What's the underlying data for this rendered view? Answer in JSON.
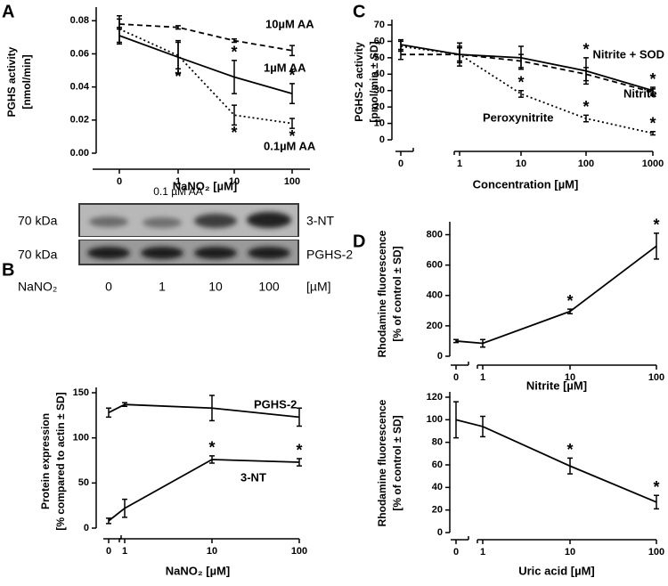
{
  "chart_data": [
    {
      "type": "line",
      "panel": "A",
      "y_label": [
        "PGHS activity",
        "[nmol/min]"
      ],
      "x_label": "NaNO₂ [µM]",
      "categories": [
        "0",
        "1",
        "10",
        "100"
      ],
      "ylim": [
        0,
        0.085
      ],
      "yticks": [
        {
          "value": 0,
          "label": "0.00"
        },
        {
          "value": 0.02,
          "label": "0.02"
        },
        {
          "value": 0.04,
          "label": "0.04"
        },
        {
          "value": 0.06,
          "label": "0.06"
        },
        {
          "value": 0.08,
          "label": "0.08"
        }
      ],
      "axis_break": false,
      "series": [
        {
          "name": "10µM AA",
          "color": "#000000",
          "line_style": "dashed",
          "values": [
            0.078,
            0.076,
            0.068,
            0.062
          ],
          "errors": [
            0.003,
            0.001,
            0.001,
            0.003
          ],
          "significance": [
            null,
            null,
            null,
            null
          ]
        },
        {
          "name": "1µM AA",
          "color": "#000000",
          "line_style": "solid",
          "values": [
            0.071,
            0.058,
            0.046,
            0.036
          ],
          "errors": [
            0.005,
            0.01,
            0.01,
            0.006
          ],
          "significance": [
            null,
            null,
            "*",
            "*"
          ]
        },
        {
          "name": "0.1µM AA",
          "color": "#000000",
          "line_style": "dotted",
          "values": [
            0.075,
            0.059,
            0.023,
            0.018
          ],
          "errors": [
            0.008,
            0.008,
            0.006,
            0.003
          ],
          "significance": [
            null,
            "*",
            "*",
            "*"
          ]
        }
      ]
    },
    {
      "type": "line",
      "panel": "C",
      "y_label": [
        "PGHS-2 activity",
        "[pmol/min ± SD]"
      ],
      "x_label": "Concentration [µM]",
      "categories": [
        "0",
        "1",
        "10",
        "100",
        "1000"
      ],
      "ylim": [
        0,
        70
      ],
      "yticks": [
        0,
        10,
        20,
        30,
        40,
        50,
        60,
        70
      ],
      "axis_break": true,
      "series": [
        {
          "name": "Nitrite + SOD",
          "color": "#000000",
          "line_style": "solid",
          "values": [
            58,
            52,
            50,
            42,
            30
          ],
          "errors": [
            3,
            7,
            7,
            8,
            2
          ],
          "significance": [
            null,
            null,
            null,
            "*",
            "*"
          ]
        },
        {
          "name": "Nitrite",
          "color": "#000000",
          "line_style": "dashed",
          "values": [
            52,
            52,
            48,
            40,
            29
          ],
          "errors": [
            3,
            4,
            4,
            4,
            2
          ],
          "significance": [
            null,
            null,
            null,
            null,
            null
          ]
        },
        {
          "name": "Peroxynitrite",
          "color": "#000000",
          "line_style": "dotted",
          "values": [
            57,
            52,
            28,
            13,
            4
          ],
          "errors": [
            3,
            5,
            2,
            2,
            1
          ],
          "significance": [
            null,
            null,
            "*",
            "*",
            "*"
          ]
        }
      ]
    },
    {
      "type": "line",
      "y_label": [
        "Protein expression",
        "[% compared to actin ± SD]"
      ],
      "x_label": "NaNO₂ [µM]",
      "categories": [
        "0",
        "1",
        "10",
        "100"
      ],
      "ylim": [
        0,
        150
      ],
      "yticks": [
        0,
        50,
        100,
        150
      ],
      "axis_break": true,
      "series": [
        {
          "name": "PGHS-2",
          "color": "#000000",
          "line_style": "solid",
          "values": [
            128,
            137,
            133,
            123
          ],
          "errors": [
            5,
            2,
            14,
            10
          ],
          "significance": [
            null,
            null,
            null,
            null
          ]
        },
        {
          "name": "3-NT",
          "color": "#000000",
          "line_style": "solid",
          "values": [
            8,
            22,
            76,
            73
          ],
          "errors": [
            3,
            10,
            4,
            4
          ],
          "significance": [
            null,
            null,
            "*",
            "*"
          ]
        }
      ]
    },
    {
      "type": "line",
      "panel": "D",
      "y_label": [
        "Rhodamine fluorescence",
        "[% of control ± SD]"
      ],
      "x_label": "Nitrite [µM]",
      "categories": [
        "0",
        "1",
        "10",
        "100"
      ],
      "ylim": [
        0,
        850
      ],
      "yticks": [
        0,
        200,
        400,
        600,
        800
      ],
      "axis_break": true,
      "series": [
        {
          "name": null,
          "color": "#000000",
          "line_style": "solid",
          "values": [
            100,
            85,
            295,
            725
          ],
          "errors": [
            10,
            25,
            15,
            85
          ],
          "significance": [
            null,
            null,
            "*",
            "*"
          ]
        }
      ]
    },
    {
      "type": "line",
      "y_label": [
        "Rhodamine fluorescence",
        "[% of control ± SD]"
      ],
      "x_label": "Uric acid [µM]",
      "categories": [
        "0",
        "1",
        "10",
        "100"
      ],
      "ylim": [
        0,
        120
      ],
      "yticks": [
        0,
        20,
        40,
        60,
        80,
        100,
        120
      ],
      "axis_break": true,
      "series": [
        {
          "name": null,
          "color": "#000000",
          "line_style": "solid",
          "values": [
            100,
            94,
            59,
            27
          ],
          "errors": [
            16,
            9,
            7,
            6
          ],
          "significance": [
            null,
            null,
            "*",
            "*"
          ]
        }
      ]
    }
  ],
  "blot": {
    "panel": "B",
    "condition": "0.1 µM AA",
    "bands": [
      {
        "size": "70 kDa",
        "label": "3-NT"
      },
      {
        "size": "70 kDa",
        "label": "PGHS-2"
      }
    ],
    "treatment": "NaNO₂",
    "lanes": [
      "0",
      "1",
      "10",
      "100"
    ],
    "unit": "[µM]"
  }
}
